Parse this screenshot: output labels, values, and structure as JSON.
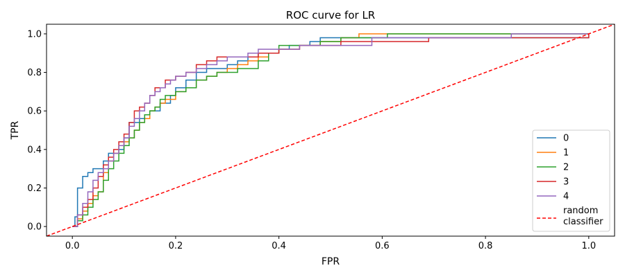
{
  "chart_data": {
    "type": "line",
    "title": "ROC curve for LR",
    "xlabel": "FPR",
    "ylabel": "TPR",
    "xlim": [
      -0.05,
      1.05
    ],
    "ylim": [
      -0.05,
      1.05
    ],
    "xticks": [
      0.0,
      0.2,
      0.4,
      0.6,
      0.8,
      1.0
    ],
    "xtick_labels": [
      "0.0",
      "0.2",
      "0.4",
      "0.6",
      "0.8",
      "1.0"
    ],
    "yticks": [
      0.0,
      0.2,
      0.4,
      0.6,
      0.8,
      1.0
    ],
    "ytick_labels": [
      "0.0",
      "0.2",
      "0.4",
      "0.6",
      "0.8",
      "1.0"
    ],
    "grid": false,
    "legend_position": "lower-right",
    "series": [
      {
        "name": "0",
        "color": "#1f77b4",
        "style": "step",
        "x": [
          0.0,
          0.005,
          0.01,
          0.02,
          0.02,
          0.03,
          0.03,
          0.04,
          0.04,
          0.05,
          0.06,
          0.06,
          0.07,
          0.07,
          0.09,
          0.09,
          0.1,
          0.1,
          0.11,
          0.11,
          0.12,
          0.13,
          0.14,
          0.15,
          0.15,
          0.16,
          0.17,
          0.17,
          0.19,
          0.19,
          0.2,
          0.2,
          0.22,
          0.24,
          0.26,
          0.28,
          0.3,
          0.32,
          0.34,
          0.36,
          0.38,
          0.4,
          0.42,
          0.46,
          0.48,
          0.52,
          0.58,
          1.0
        ],
        "y": [
          0.0,
          0.05,
          0.2,
          0.22,
          0.26,
          0.26,
          0.28,
          0.28,
          0.3,
          0.3,
          0.32,
          0.34,
          0.36,
          0.38,
          0.38,
          0.4,
          0.42,
          0.46,
          0.5,
          0.54,
          0.54,
          0.56,
          0.58,
          0.58,
          0.6,
          0.6,
          0.62,
          0.64,
          0.64,
          0.68,
          0.7,
          0.72,
          0.76,
          0.8,
          0.82,
          0.82,
          0.84,
          0.86,
          0.88,
          0.9,
          0.9,
          0.92,
          0.94,
          0.96,
          0.98,
          0.98,
          0.98,
          1.0
        ]
      },
      {
        "name": "1",
        "color": "#ff7f0e",
        "style": "step",
        "x": [
          0.0,
          0.01,
          0.02,
          0.03,
          0.04,
          0.05,
          0.06,
          0.06,
          0.07,
          0.08,
          0.09,
          0.1,
          0.11,
          0.12,
          0.13,
          0.14,
          0.15,
          0.16,
          0.17,
          0.18,
          0.2,
          0.22,
          0.24,
          0.26,
          0.28,
          0.3,
          0.32,
          0.34,
          0.36,
          0.38,
          0.4,
          0.42,
          0.44,
          0.48,
          0.52,
          0.555,
          1.0
        ],
        "y": [
          0.0,
          0.04,
          0.08,
          0.12,
          0.16,
          0.18,
          0.22,
          0.28,
          0.34,
          0.38,
          0.42,
          0.44,
          0.46,
          0.5,
          0.54,
          0.56,
          0.6,
          0.62,
          0.64,
          0.66,
          0.7,
          0.72,
          0.76,
          0.78,
          0.8,
          0.82,
          0.84,
          0.86,
          0.88,
          0.9,
          0.92,
          0.92,
          0.94,
          0.96,
          0.98,
          1.0,
          1.0
        ]
      },
      {
        "name": "2",
        "color": "#2ca02c",
        "style": "step",
        "x": [
          0.0,
          0.01,
          0.02,
          0.03,
          0.04,
          0.05,
          0.06,
          0.07,
          0.08,
          0.09,
          0.1,
          0.11,
          0.12,
          0.13,
          0.14,
          0.15,
          0.16,
          0.17,
          0.18,
          0.2,
          0.22,
          0.24,
          0.26,
          0.28,
          0.32,
          0.36,
          0.38,
          0.4,
          0.42,
          0.44,
          0.48,
          0.52,
          0.58,
          0.61,
          1.0
        ],
        "y": [
          0.0,
          0.03,
          0.06,
          0.1,
          0.14,
          0.18,
          0.24,
          0.3,
          0.34,
          0.38,
          0.42,
          0.46,
          0.5,
          0.54,
          0.58,
          0.6,
          0.62,
          0.66,
          0.68,
          0.7,
          0.72,
          0.76,
          0.78,
          0.8,
          0.82,
          0.86,
          0.9,
          0.94,
          0.94,
          0.94,
          0.96,
          0.98,
          0.98,
          1.0,
          1.0
        ]
      },
      {
        "name": "3",
        "color": "#d62728",
        "style": "step",
        "x": [
          0.0,
          0.01,
          0.02,
          0.03,
          0.04,
          0.05,
          0.06,
          0.07,
          0.08,
          0.09,
          0.1,
          0.11,
          0.12,
          0.13,
          0.14,
          0.15,
          0.16,
          0.18,
          0.2,
          0.22,
          0.24,
          0.26,
          0.28,
          0.32,
          0.36,
          0.4,
          0.44,
          0.52,
          0.69,
          0.98,
          1.0
        ],
        "y": [
          0.0,
          0.06,
          0.1,
          0.14,
          0.2,
          0.26,
          0.32,
          0.36,
          0.4,
          0.44,
          0.48,
          0.54,
          0.6,
          0.62,
          0.64,
          0.68,
          0.72,
          0.76,
          0.78,
          0.8,
          0.84,
          0.86,
          0.88,
          0.88,
          0.9,
          0.92,
          0.94,
          0.96,
          0.98,
          0.98,
          1.0
        ]
      },
      {
        "name": "4",
        "color": "#9467bd",
        "style": "step",
        "x": [
          0.0,
          0.01,
          0.02,
          0.03,
          0.04,
          0.05,
          0.06,
          0.07,
          0.08,
          0.09,
          0.1,
          0.11,
          0.12,
          0.13,
          0.14,
          0.15,
          0.16,
          0.17,
          0.18,
          0.19,
          0.2,
          0.22,
          0.24,
          0.26,
          0.28,
          0.3,
          0.34,
          0.36,
          0.4,
          0.44,
          0.56,
          0.58,
          0.85,
          1.0
        ],
        "y": [
          0.0,
          0.06,
          0.12,
          0.18,
          0.24,
          0.28,
          0.3,
          0.34,
          0.38,
          0.42,
          0.46,
          0.52,
          0.56,
          0.6,
          0.64,
          0.68,
          0.7,
          0.72,
          0.74,
          0.76,
          0.78,
          0.8,
          0.82,
          0.84,
          0.86,
          0.88,
          0.9,
          0.92,
          0.92,
          0.94,
          0.94,
          0.98,
          1.0,
          1.0
        ]
      }
    ],
    "reference_line": {
      "name": "random classifier",
      "legend_label_lines": [
        "random",
        "classifier"
      ],
      "color": "#ff0000",
      "style": "dashed",
      "x": [
        -0.05,
        1.05
      ],
      "y": [
        -0.05,
        1.05
      ]
    }
  }
}
